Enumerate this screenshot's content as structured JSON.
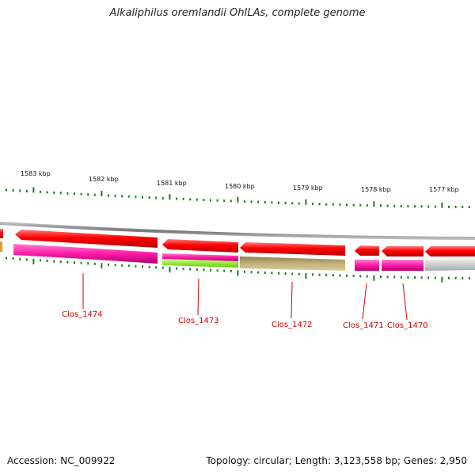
{
  "title": "Alkaliphilus oremlandii OhILAs, complete genome",
  "footer": {
    "accession": "Accession: NC_009922",
    "summary": "Topology: circular; Length: 3,123,558 bp; Genes: 2,950"
  },
  "ticks": [
    "1583 kbp",
    "1582 kbp",
    "1581 kbp",
    "1580 kbp",
    "1579 kbp",
    "1578 kbp",
    "1577 kbp"
  ],
  "genes": [
    "Clos_1474",
    "Clos_1473",
    "Clos_1472",
    "Clos_1471",
    "Clos_1470"
  ],
  "colors": {
    "cds": "#ff0000",
    "track_magenta": "#ff1aa8",
    "track_green": "#99ff33",
    "track_olive": "#b5a46a",
    "track_gray": "#cccccc",
    "tick": "#1f7a1f",
    "label": "#d40000"
  }
}
